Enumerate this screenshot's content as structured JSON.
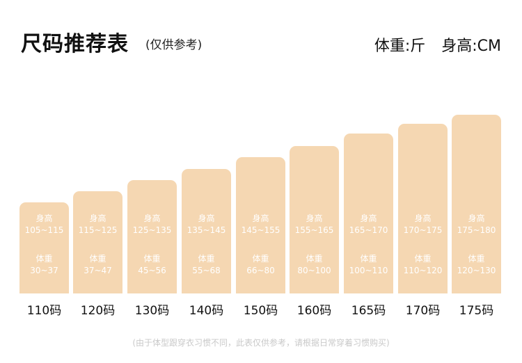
{
  "header": {
    "title": "尺码推荐表",
    "subtitle": "(仅供参考)",
    "weight_unit": "体重:斤",
    "height_unit": "身高:CM"
  },
  "chart_data": {
    "type": "bar",
    "categories": [
      "110码",
      "120码",
      "130码",
      "140码",
      "150码",
      "160码",
      "165码",
      "170码",
      "175码"
    ],
    "height_label": "身高",
    "weight_label": "体重",
    "height_ranges": [
      "105~115",
      "115~125",
      "125~135",
      "135~145",
      "145~155",
      "155~165",
      "165~170",
      "170~175",
      "175~180"
    ],
    "weight_ranges": [
      "30~37",
      "37~47",
      "45~56",
      "55~68",
      "66~80",
      "80~100",
      "100~110",
      "110~120",
      "120~130"
    ],
    "color": "#f5d7b2"
  },
  "footer": {
    "note": "(由于体型跟穿衣习惯不同，此表仅供参考，请根据日常穿着习惯购买)"
  }
}
